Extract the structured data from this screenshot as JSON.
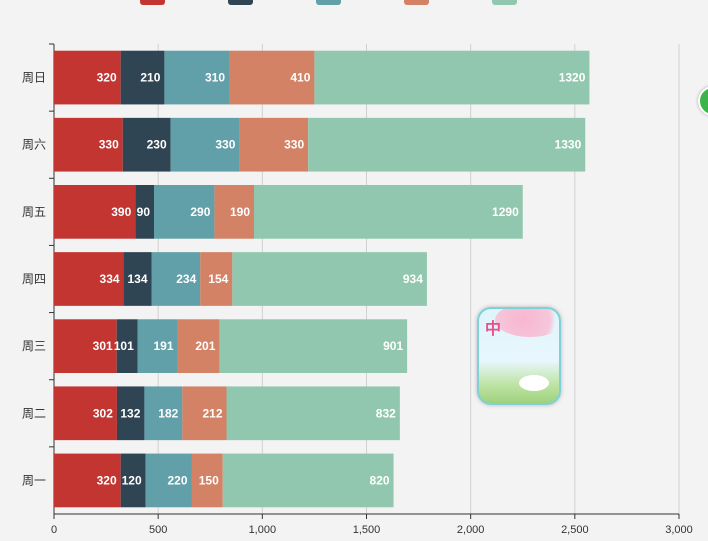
{
  "chart_data": {
    "type": "bar",
    "orientation": "horizontal",
    "stacked": true,
    "categories": [
      "周一",
      "周二",
      "周三",
      "周四",
      "周五",
      "周六",
      "周日"
    ],
    "series": [
      {
        "color": "#c23531",
        "values": [
          320,
          302,
          301,
          334,
          390,
          330,
          320
        ]
      },
      {
        "color": "#2f4554",
        "values": [
          120,
          132,
          101,
          134,
          90,
          230,
          210
        ]
      },
      {
        "color": "#61a0a8",
        "values": [
          220,
          182,
          191,
          234,
          290,
          330,
          310
        ]
      },
      {
        "color": "#d48265",
        "values": [
          150,
          212,
          201,
          154,
          190,
          330,
          410
        ]
      },
      {
        "color": "#91c7ae",
        "values": [
          820,
          832,
          901,
          934,
          1290,
          1330,
          1320
        ]
      }
    ],
    "xlim": [
      0,
      3000
    ],
    "x_ticks": [
      "0",
      "500",
      "1,000",
      "1,500",
      "2,000",
      "2,500",
      "3,000"
    ],
    "grid": true,
    "legend_position": "top"
  },
  "icons": {
    "widget": "wallpaper-widget-icon",
    "edge": "green-circle-icon"
  }
}
